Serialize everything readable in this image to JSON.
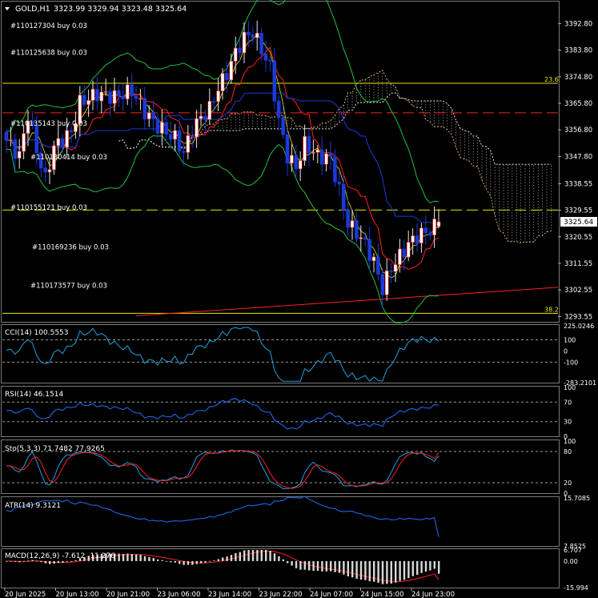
{
  "symbol": {
    "title": "GOLD,H1",
    "ohlc": "3323.99 3329.94 3323.48 3325.64",
    "menu_icon": "triangle-down-icon"
  },
  "order_labels": [
    {
      "text": "#110127304 buy 0.03",
      "price": 3391.0
    },
    {
      "text": "#110125638 buy 0.03",
      "price": 3382.0
    },
    {
      "text": "#110135143 buy 0.03",
      "price": 3358.0
    },
    {
      "text": "#110130414 buy 0.03",
      "price": 3346.5
    },
    {
      "text": "#110155121 buy 0.03",
      "price": 3329.5
    },
    {
      "text": "#110169236 buy 0.03",
      "price": 3316.0
    },
    {
      "text": "#110173577 buy 0.03",
      "price": 3303.0
    }
  ],
  "fib_labels": [
    {
      "text": "23.6",
      "price": 3372.6
    },
    {
      "text": "38.2",
      "price": 3294.6
    }
  ],
  "chart_data": [
    {
      "type": "candlestick",
      "name": "GOLD,H1",
      "y_ticks": [
        "3392.80",
        "3383.80",
        "3374.80",
        "3365.80",
        "3356.80",
        "3347.80",
        "3338.55",
        "3329.55",
        "3320.55",
        "3311.55",
        "3302.55",
        "3293.55"
      ],
      "ylim": [
        3292.0,
        3400.0
      ],
      "current_price": {
        "label": "3325.64",
        "value": 3325.64
      },
      "x_ticks": [
        "20 Jun 2025",
        "20 Jun 13:00",
        "20 Jun 21:00",
        "23 Jun 06:00",
        "23 Jun 14:00",
        "23 Jun 22:00",
        "24 Jun 07:00",
        "24 Jun 15:00",
        "24 Jun 23:00"
      ],
      "horizontal_lines": [
        {
          "name": "fib-23.6",
          "value": 3372.6,
          "color": "#e6e600",
          "style": "solid"
        },
        {
          "name": "pending-level",
          "value": 3362.6,
          "color": "#ff2020",
          "style": "dashed"
        },
        {
          "name": "buy-level",
          "value": 3329.6,
          "color": "#e6e600",
          "style": "dashed"
        },
        {
          "name": "fib-38.2",
          "value": 3294.6,
          "color": "#e6e600",
          "style": "solid"
        }
      ],
      "trendline": {
        "color": "#ff2020",
        "from": [
          30,
          3293.8
        ],
        "to": [
          99,
          3300.6
        ]
      },
      "colors": {
        "bull": "#e8e8e8",
        "bear": "#1a3ad8",
        "bull_body_fill": "#ffffff",
        "tenkan": "#ff2020",
        "kijun": "#1a3ad8",
        "senkou": "#bbbbbb",
        "bollinger": "#20c040",
        "envelope": "#e6e600",
        "stoch_ma": "#20c040"
      }
    },
    {
      "type": "line",
      "name": "CCI(14)",
      "title": "CCI(14) 100.5553",
      "y_ticks": [
        "225.0246",
        "100",
        "0",
        "-100",
        "-283.2101"
      ],
      "levels": [
        100,
        -100
      ],
      "ylim": [
        -283.21,
        225.02
      ],
      "color": "#1fa0e0"
    },
    {
      "type": "line",
      "name": "RSI(14)",
      "title": "RSI(14) 46.1514",
      "y_ticks": [
        "100",
        "70",
        "30",
        "0"
      ],
      "levels": [
        70,
        30
      ],
      "ylim": [
        0,
        100
      ],
      "color": "#2070ff"
    },
    {
      "type": "line",
      "name": "Sto(5,3,3)",
      "title": "Sto(5,3,3) 71.7482 77.9265",
      "y_ticks": [
        "100",
        "80",
        "20",
        "0"
      ],
      "levels": [
        80,
        20
      ],
      "ylim": [
        0,
        100
      ],
      "series_colors": [
        "#1fa0e0",
        "#ff2020"
      ]
    },
    {
      "type": "line",
      "name": "ATR(14)",
      "title": "ATR(14) 9.3121",
      "y_ticks": [
        "15.7085",
        "7.8525"
      ],
      "ylim": [
        7.85,
        15.71
      ],
      "color": "#2070ff"
    },
    {
      "type": "bar",
      "name": "MACD(12,26,9)",
      "title": "MACD(12,26,9) -7.612 -11.276",
      "y_ticks": [
        "6.707",
        "0.00",
        "-15.994"
      ],
      "ylim": [
        -15.994,
        6.707
      ],
      "bar_color": "#d8d8d8",
      "signal_color": "#ff2020"
    }
  ]
}
